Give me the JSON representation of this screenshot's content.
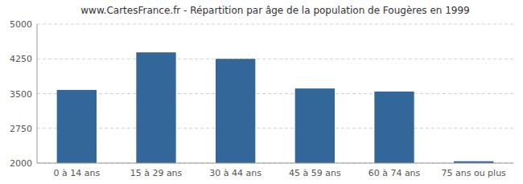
{
  "chart_data": {
    "type": "bar",
    "title": "www.CartesFrance.fr - Répartition par âge de la population de Fougères en 1999",
    "categories": [
      "0 à 14 ans",
      "15 à 29 ans",
      "30 à 44 ans",
      "45 à 59 ans",
      "60 à 74 ans",
      "75 ans ou plus"
    ],
    "values": [
      3580,
      4390,
      4250,
      3610,
      3545,
      2040
    ],
    "color": "#336699",
    "ylim": [
      2000,
      5000
    ],
    "yticks": [
      2000,
      2750,
      3500,
      4250,
      5000
    ],
    "grid": true
  }
}
